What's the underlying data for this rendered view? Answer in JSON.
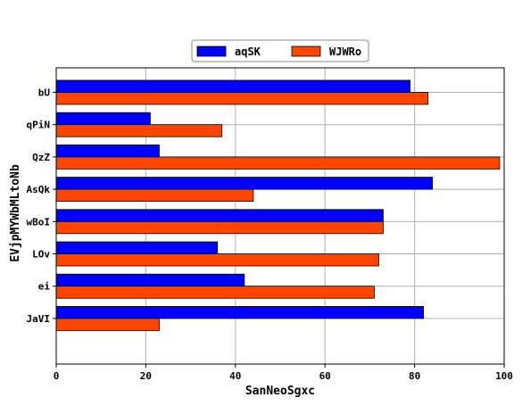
{
  "chart_data": {
    "type": "bar",
    "orientation": "horizontal",
    "title": "",
    "xlabel": "SanNeoSgxc",
    "ylabel": "EVjpMYWbMLtoNb",
    "categories": [
      "bU",
      "qPiN",
      "QzZ",
      "AsQk",
      "wBoI",
      "LOv",
      "ei",
      "JaVI"
    ],
    "series": [
      {
        "name": "aqSK",
        "color": "#0000ff",
        "values": [
          79,
          21,
          23,
          84,
          73,
          36,
          42,
          82
        ]
      },
      {
        "name": "WJWRo",
        "color": "#ff4500",
        "values": [
          83,
          37,
          99,
          44,
          73,
          72,
          71,
          23
        ]
      }
    ],
    "xlim": [
      0,
      100
    ],
    "xticks": [
      0,
      20,
      40,
      60,
      80,
      100
    ],
    "grid": true,
    "legend_position": "top-center"
  }
}
